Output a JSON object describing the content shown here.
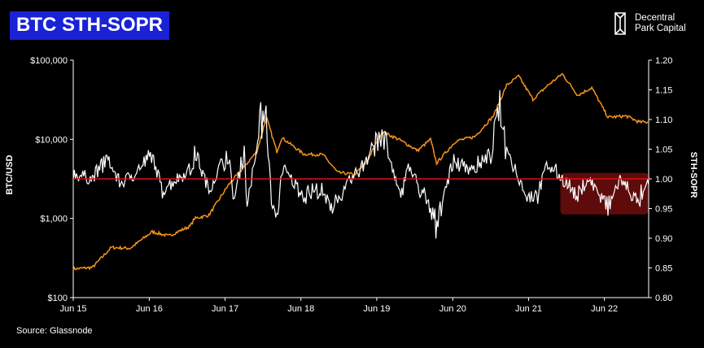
{
  "header": {
    "title": "BTC STH-SOPR",
    "brand_line1": "Decentral",
    "brand_line2": "Park Capital"
  },
  "footer": {
    "source": "Source: Glassnode"
  },
  "colors": {
    "background": "#000000",
    "title_box": "#1a22d6",
    "price_line": "#f7931a",
    "sopr_line": "#ffffff",
    "baseline": "#e01010",
    "highlight": "#6e0d0d"
  },
  "chart_data": {
    "type": "line",
    "title": "BTC STH-SOPR",
    "ylabel_left": "BTC/USD",
    "ylabel_right": "STH-SOPR",
    "y_left_scale": "log",
    "y_left_range": [
      100,
      100000
    ],
    "y_left_ticks": [
      "$100",
      "$1,000",
      "$10,000",
      "$100,000"
    ],
    "y_right_range": [
      0.8,
      1.2
    ],
    "y_right_ticks": [
      "0.80",
      "0.85",
      "0.90",
      "0.95",
      "1.00",
      "1.05",
      "1.10",
      "1.15",
      "1.20"
    ],
    "x_range": [
      "2015-06-01",
      "2022-12-31"
    ],
    "x_ticks": [
      "Jun 15",
      "Jun 16",
      "Jun 17",
      "Jun 18",
      "Jun 19",
      "Jun 20",
      "Jun 21",
      "Jun 22"
    ],
    "reference_line": 1.0,
    "highlight_region": {
      "x_start": "2021-11-01",
      "x_end": "2022-12-31",
      "y_min": 0.94,
      "y_max": 1.01
    },
    "grid": false,
    "series": [
      {
        "name": "BTC/USD",
        "axis": "left",
        "points": [
          [
            "2015-06-01",
            230
          ],
          [
            "2015-09-01",
            240
          ],
          [
            "2015-12-01",
            430
          ],
          [
            "2016-03-01",
            420
          ],
          [
            "2016-06-15",
            680
          ],
          [
            "2016-09-01",
            600
          ],
          [
            "2016-12-15",
            800
          ],
          [
            "2017-01-05",
            1000
          ],
          [
            "2017-03-15",
            1100
          ],
          [
            "2017-06-15",
            2600
          ],
          [
            "2017-09-01",
            4500
          ],
          [
            "2017-11-01",
            7000
          ],
          [
            "2017-12-17",
            19000
          ],
          [
            "2018-02-05",
            7000
          ],
          [
            "2018-03-01",
            10500
          ],
          [
            "2018-06-15",
            6500
          ],
          [
            "2018-09-15",
            6400
          ],
          [
            "2018-11-25",
            3800
          ],
          [
            "2019-02-15",
            3600
          ],
          [
            "2019-04-15",
            5200
          ],
          [
            "2019-06-26",
            12500
          ],
          [
            "2019-09-15",
            10000
          ],
          [
            "2019-12-15",
            7200
          ],
          [
            "2020-02-15",
            10000
          ],
          [
            "2020-03-15",
            5000
          ],
          [
            "2020-06-15",
            9500
          ],
          [
            "2020-09-15",
            10800
          ],
          [
            "2020-12-15",
            20000
          ],
          [
            "2021-02-15",
            48000
          ],
          [
            "2021-04-14",
            63000
          ],
          [
            "2021-06-22",
            32000
          ],
          [
            "2021-09-01",
            48000
          ],
          [
            "2021-11-10",
            67000
          ],
          [
            "2022-01-24",
            36000
          ],
          [
            "2022-04-01",
            45000
          ],
          [
            "2022-06-18",
            19000
          ],
          [
            "2022-09-15",
            19700
          ],
          [
            "2022-11-15",
            16500
          ],
          [
            "2022-12-31",
            16600
          ]
        ]
      },
      {
        "name": "STH-SOPR",
        "axis": "right",
        "points": [
          [
            "2015-06-01",
            1.01
          ],
          [
            "2015-09-01",
            1.0
          ],
          [
            "2015-11-05",
            1.04
          ],
          [
            "2016-01-15",
            0.99
          ],
          [
            "2016-06-17",
            1.04
          ],
          [
            "2016-08-03",
            0.98
          ],
          [
            "2016-12-20",
            1.02
          ],
          [
            "2017-01-05",
            1.05
          ],
          [
            "2017-03-15",
            0.98
          ],
          [
            "2017-06-12",
            1.05
          ],
          [
            "2017-07-15",
            0.96
          ],
          [
            "2017-09-01",
            1.06
          ],
          [
            "2017-09-15",
            0.95
          ],
          [
            "2017-12-10",
            1.15
          ],
          [
            "2018-01-15",
            0.94
          ],
          [
            "2018-02-05",
            0.92
          ],
          [
            "2018-03-01",
            1.02
          ],
          [
            "2018-06-15",
            0.97
          ],
          [
            "2018-08-15",
            0.98
          ],
          [
            "2018-11-20",
            0.95
          ],
          [
            "2019-01-15",
            0.99
          ],
          [
            "2019-04-02",
            1.03
          ],
          [
            "2019-06-26",
            1.09
          ],
          [
            "2019-09-25",
            0.96
          ],
          [
            "2019-10-26",
            1.03
          ],
          [
            "2020-03-12",
            0.92
          ],
          [
            "2020-06-01",
            1.03
          ],
          [
            "2020-09-15",
            1.02
          ],
          [
            "2020-12-01",
            1.04
          ],
          [
            "2021-01-08",
            1.13
          ],
          [
            "2021-02-15",
            1.06
          ],
          [
            "2021-05-19",
            0.97
          ],
          [
            "2021-07-15",
            0.97
          ],
          [
            "2021-09-01",
            1.03
          ],
          [
            "2021-11-10",
            1.0
          ],
          [
            "2022-01-24",
            0.97
          ],
          [
            "2022-03-15",
            1.0
          ],
          [
            "2022-06-18",
            0.95
          ],
          [
            "2022-08-15",
            1.0
          ],
          [
            "2022-11-09",
            0.96
          ],
          [
            "2022-12-31",
            0.99
          ]
        ]
      }
    ]
  }
}
